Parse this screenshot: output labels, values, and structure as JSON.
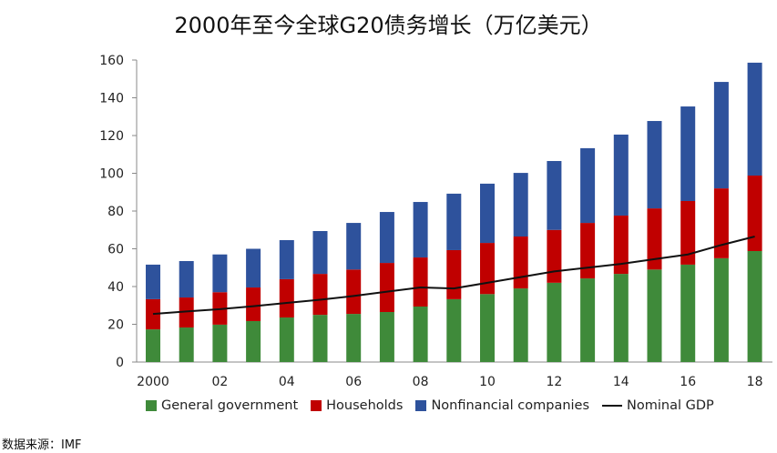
{
  "chart_data": {
    "type": "bar",
    "stacked": true,
    "title": "2000年至今全球G20债务增长（万亿美元）",
    "xlabel": "",
    "ylabel": "",
    "ylim": [
      0,
      160
    ],
    "yticks": [
      0,
      20,
      40,
      60,
      80,
      100,
      120,
      140,
      160
    ],
    "categories": [
      "2000",
      "01",
      "02",
      "03",
      "04",
      "05",
      "06",
      "07",
      "08",
      "09",
      "10",
      "11",
      "12",
      "13",
      "14",
      "15",
      "16",
      "17",
      "18"
    ],
    "xtick_labels": [
      "2000",
      "02",
      "04",
      "06",
      "08",
      "10",
      "12",
      "14",
      "16",
      "18"
    ],
    "series": [
      {
        "name": "General government",
        "color": "#3f8a3a",
        "values": [
          17.3,
          18.3,
          19.8,
          21.7,
          23.6,
          25,
          25.5,
          26.5,
          29.4,
          33.3,
          36,
          39,
          42,
          44.3,
          46.7,
          49,
          51.6,
          55,
          58.8
        ]
      },
      {
        "name": "Households",
        "color": "#c00000",
        "values": [
          16,
          15.9,
          17.2,
          17.8,
          20.3,
          21.7,
          23.5,
          26,
          26,
          26,
          27.1,
          27.5,
          28,
          29.4,
          30.9,
          32.4,
          33.7,
          37,
          40
        ]
      },
      {
        "name": "Nonfinancial companies",
        "color": "#2e529c",
        "values": [
          18.3,
          19.3,
          20,
          20.5,
          20.7,
          22.7,
          24.7,
          27,
          29.4,
          29.9,
          31.4,
          33.7,
          36.5,
          39.6,
          42.9,
          46.3,
          50.1,
          56.4,
          59.8
        ]
      }
    ],
    "line_series": {
      "name": "Nominal GDP",
      "color": "#111111",
      "values": [
        25.5,
        26.8,
        28,
        29.6,
        31.3,
        33,
        35,
        37.3,
        39.5,
        39,
        42,
        45,
        48,
        50,
        52,
        54.5,
        57,
        62,
        66.5
      ]
    },
    "legend_position": "bottom",
    "grid": false
  },
  "source": "数据来源：IMF"
}
